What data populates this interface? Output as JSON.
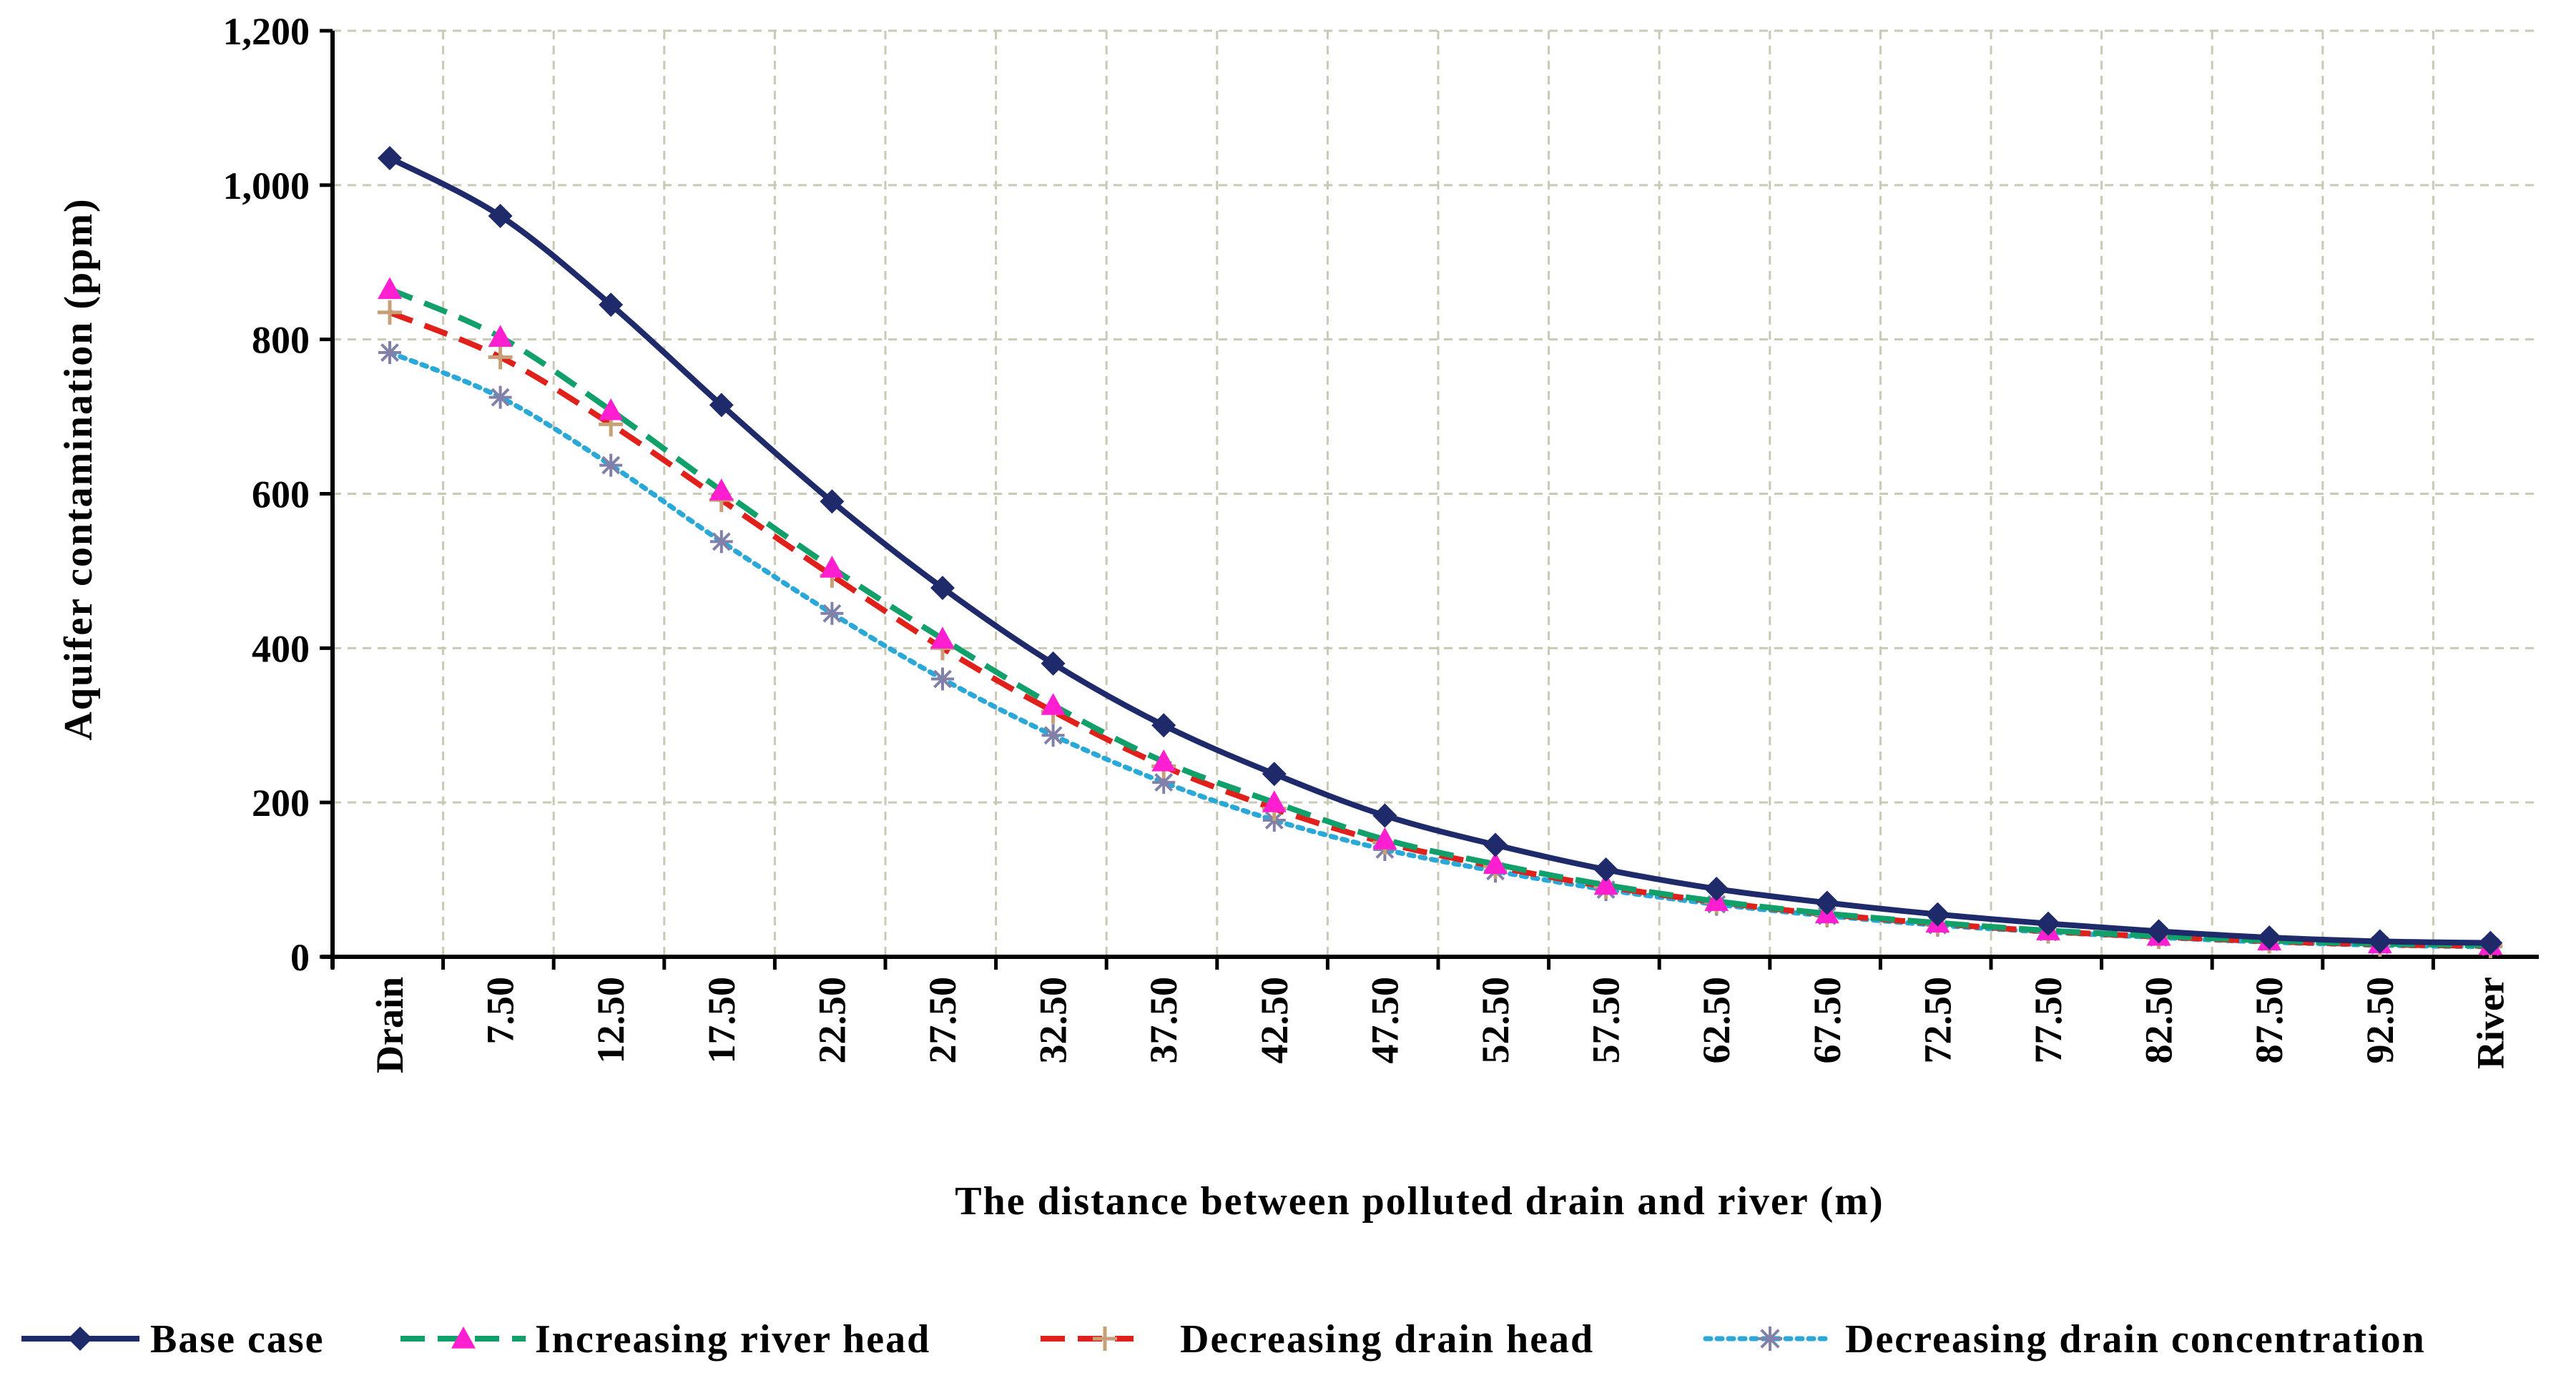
{
  "chart_data": {
    "type": "line",
    "title": "",
    "xlabel": "The distance between polluted drain and river (m)",
    "ylabel": "Aquifer contamination (ppm)",
    "ylim": [
      0,
      1200
    ],
    "yticks": [
      0,
      200,
      400,
      600,
      800,
      1000,
      1200
    ],
    "ytick_labels": [
      "0",
      "200",
      "400",
      "600",
      "800",
      "1,000",
      "1,200"
    ],
    "grid": true,
    "legend_position": "bottom",
    "categories": [
      "Drain",
      "7.50",
      "12.50",
      "17.50",
      "22.50",
      "27.50",
      "32.50",
      "37.50",
      "42.50",
      "47.50",
      "52.50",
      "57.50",
      "62.50",
      "67.50",
      "72.50",
      "77.50",
      "82.50",
      "87.50",
      "92.50",
      "River"
    ],
    "series": [
      {
        "name": "Base case",
        "color": "#1f2a6b",
        "style": "solid",
        "marker": "diamond",
        "values": [
          1035,
          960,
          845,
          715,
          590,
          478,
          380,
          300,
          237,
          183,
          145,
          113,
          88,
          70,
          55,
          43,
          33,
          25,
          20,
          18
        ]
      },
      {
        "name": "Increasing river head",
        "color": "#12a06a",
        "marker_color": "#ff1fd0",
        "style": "dashed",
        "marker": "triangle",
        "values": [
          865,
          803,
          708,
          604,
          504,
          412,
          326,
          253,
          200,
          152,
          120,
          93,
          72,
          56,
          44,
          34,
          27,
          21,
          17,
          15
        ]
      },
      {
        "name": "Decreasing drain head",
        "color": "#e0201a",
        "marker_color": "#c8a078",
        "style": "dashed",
        "marker": "plus",
        "values": [
          835,
          777,
          690,
          592,
          494,
          400,
          318,
          247,
          192,
          148,
          117,
          91,
          71,
          55,
          43,
          33,
          26,
          20,
          16,
          14
        ]
      },
      {
        "name": "Decreasing drain concentration",
        "color": "#2aa8d8",
        "marker_color": "#8080a8",
        "style": "dotted",
        "marker": "star",
        "values": [
          783,
          725,
          637,
          538,
          445,
          360,
          287,
          226,
          177,
          139,
          111,
          87,
          68,
          53,
          41,
          32,
          25,
          19,
          15,
          13
        ]
      }
    ]
  }
}
